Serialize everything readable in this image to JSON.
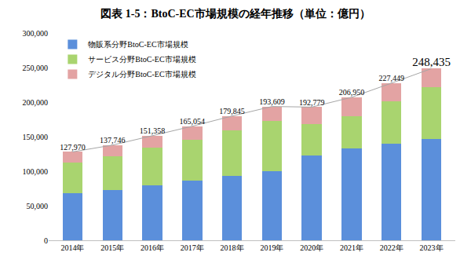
{
  "chart_data": {
    "type": "bar",
    "title": "図表 1-5：BtoC-EC市場規模の経年推移（単位：億円）",
    "categories": [
      "2014年",
      "2015年",
      "2016年",
      "2017年",
      "2018年",
      "2019年",
      "2020年",
      "2021年",
      "2022年",
      "2023年"
    ],
    "series": [
      {
        "name": "物販系分野BtoC-EC市場規模",
        "color": "#5b8fdb",
        "values": [
          68043,
          72398,
          80043,
          86008,
          92992,
          100515,
          122333,
          132865,
          139997,
          146760
        ]
      },
      {
        "name": "サービス分野BtoC-EC市場規模",
        "color": "#a9d46f",
        "values": [
          44816,
          49014,
          53532,
          59568,
          66471,
          71672,
          45832,
          46424,
          61477,
          75169
        ]
      },
      {
        "name": "デジタル分野BtoC-EC市場規模",
        "color": "#e3a3a3",
        "values": [
          15111,
          16334,
          17783,
          19478,
          20382,
          21422,
          24614,
          27661,
          25975,
          26506
        ]
      }
    ],
    "totals": {
      "color": "#a6a6a6",
      "values": [
        127970,
        137746,
        151358,
        165054,
        179845,
        193609,
        192779,
        206950,
        227449,
        248435
      ],
      "value_labels": [
        "127,970",
        "137,746",
        "151,358",
        "165,054",
        "179,845",
        "193,609",
        "192,779",
        "206,950",
        "227,449",
        "248,435"
      ]
    },
    "stacked": true,
    "data_labels": true,
    "legend": "top-left",
    "grid": false,
    "ylim": [
      0,
      300000
    ],
    "yticks": [
      0,
      {
        "value": 50000,
        "label": "50,000"
      },
      {
        "value": 100000,
        "label": "100,000"
      },
      {
        "value": 150000,
        "label": "150,000"
      },
      {
        "value": 200000,
        "label": "200,000"
      },
      {
        "value": 250000,
        "label": "250,000"
      },
      {
        "value": 300000,
        "label": "300,000"
      }
    ]
  }
}
